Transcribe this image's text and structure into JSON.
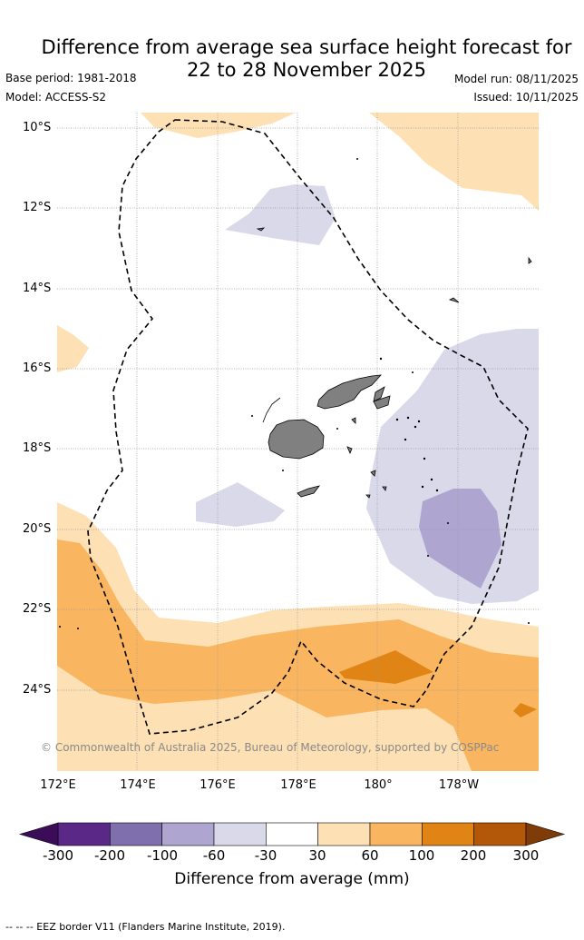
{
  "title_line1": "Difference from average sea surface height forecast for",
  "title_line2": "22 to 28 November 2025",
  "base_period": "Base period: 1981-2018",
  "model": "Model: ACCESS-S2",
  "model_run": "Model run: 08/11/2025",
  "issued": "Issued: 10/11/2025",
  "copyright": "© Commonwealth of Australia 2025, Bureau of Meteorology, supported by COSPPac",
  "lat_labels": [
    "10°S",
    "12°S",
    "14°S",
    "16°S",
    "18°S",
    "20°S",
    "22°S",
    "24°S"
  ],
  "lon_labels": [
    "172°E",
    "174°E",
    "176°E",
    "178°E",
    "180°",
    "178°W"
  ],
  "colorbar": {
    "title": "Difference from average (mm)",
    "ticks": [
      "-300",
      "-200",
      "-100",
      "-60",
      "-30",
      "30",
      "60",
      "100",
      "200",
      "300"
    ],
    "colors": [
      "#5a2887",
      "#7f70ad",
      "#aea6d0",
      "#d9d9ea",
      "#ffffff",
      "#fde0b3",
      "#f9b55f",
      "#e08515",
      "#b35808"
    ],
    "under_color": "#3b0d59",
    "over_color": "#7f3b08"
  },
  "legend_text": "--  --  -- EEZ border V11 (Flanders Marine Institute, 2019).",
  "colors": {
    "land": "#808080",
    "grid": "#999999",
    "eez": "#000000"
  }
}
